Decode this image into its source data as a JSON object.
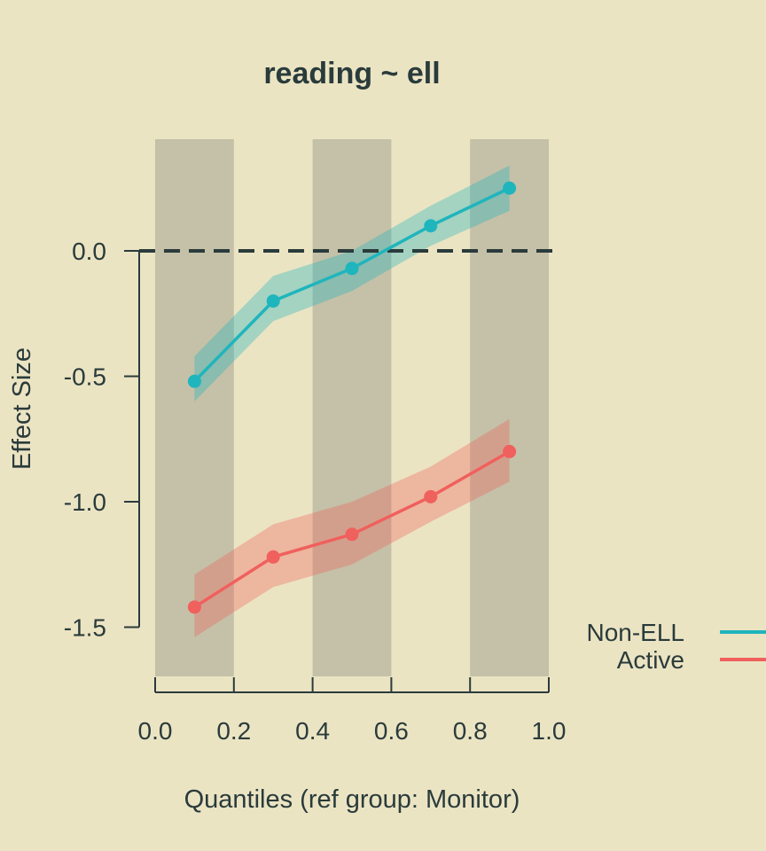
{
  "chart_data": {
    "type": "line",
    "title": "reading ~ ell",
    "xlabel": "Quantiles (ref group: Monitor)",
    "ylabel": "Effect Size",
    "xlim": [
      0,
      1
    ],
    "ylim": [
      -1.7,
      0.45
    ],
    "x_ticks": [
      "0.0",
      "0.2",
      "0.4",
      "0.6",
      "0.8",
      "1.0"
    ],
    "x_tick_values": [
      0,
      0.2,
      0.4,
      0.6,
      0.8,
      1.0
    ],
    "y_ticks": [
      "0.0",
      "-0.5",
      "-1.0",
      "-1.5"
    ],
    "y_tick_values": [
      0,
      -0.5,
      -1.0,
      -1.5
    ],
    "reference_line": 0,
    "shaded_bands": [
      [
        0,
        0.2
      ],
      [
        0.4,
        0.6
      ],
      [
        0.8,
        1.0
      ]
    ],
    "legend_position": "right",
    "x": [
      0.1,
      0.3,
      0.5,
      0.7,
      0.9
    ],
    "series": [
      {
        "name": "Non-ELL",
        "color": "#1fb5bd",
        "values": [
          -0.52,
          -0.2,
          -0.07,
          0.1,
          0.25
        ],
        "lower": [
          -0.6,
          -0.28,
          -0.16,
          0.02,
          0.16
        ],
        "upper": [
          -0.42,
          -0.1,
          0.0,
          0.18,
          0.34
        ]
      },
      {
        "name": "Active",
        "color": "#f0605d",
        "values": [
          -1.42,
          -1.22,
          -1.13,
          -0.98,
          -0.8
        ],
        "lower": [
          -1.54,
          -1.34,
          -1.25,
          -1.08,
          -0.92
        ],
        "upper": [
          -1.29,
          -1.09,
          -1.0,
          -0.86,
          -0.67
        ]
      }
    ]
  },
  "colors": {
    "background": "#ebe4c3",
    "band": "#c4c1a8",
    "axis": "#2a3b3b",
    "reference_line": "#2a3b3b"
  }
}
